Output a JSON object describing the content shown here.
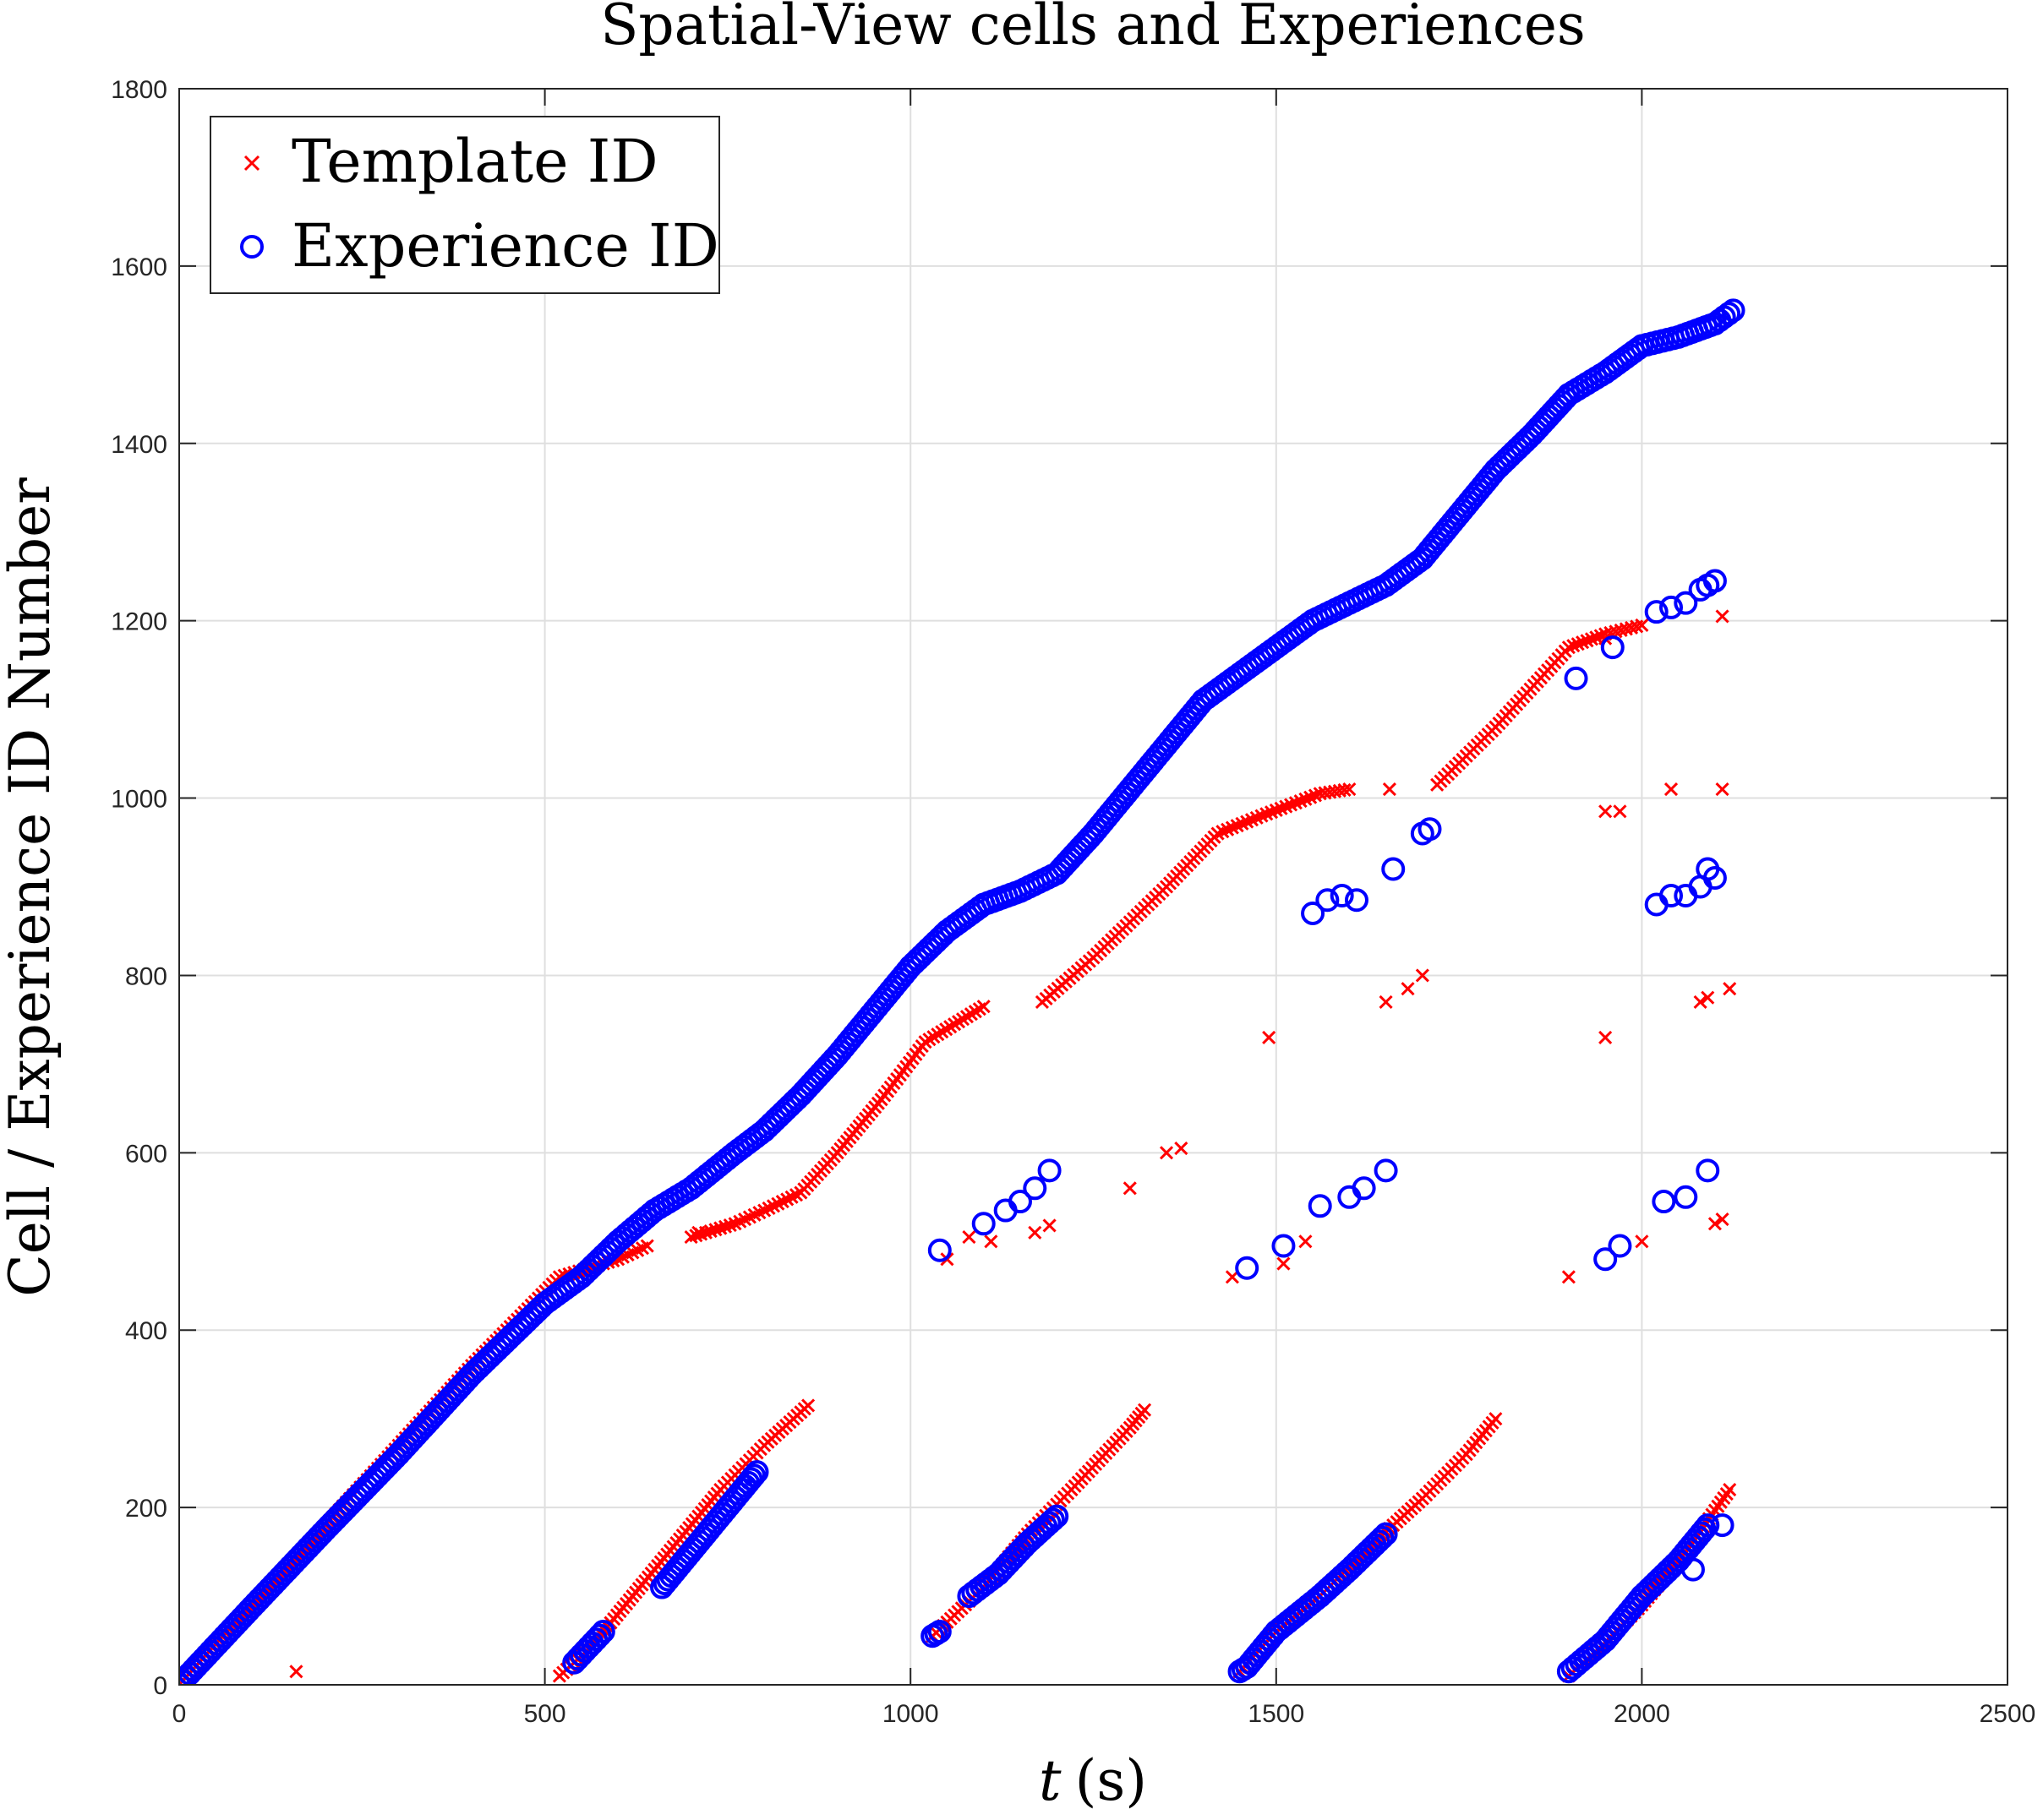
{
  "chart_data": {
    "type": "scatter",
    "title": "Spatial-View cells and Experiences",
    "xlabel_var": "t",
    "xlabel_unit": "(s)",
    "ylabel": "Cell / Experience ID Number",
    "xlim": [
      0,
      2500
    ],
    "ylim": [
      0,
      1800
    ],
    "xticks": [
      "0",
      "500",
      "1000",
      "1500",
      "2000",
      "2500"
    ],
    "yticks": [
      "0",
      "200",
      "400",
      "600",
      "800",
      "1000",
      "1200",
      "1400",
      "1600",
      "1800"
    ],
    "grid": true,
    "legend_position": "top-left",
    "colors": {
      "template": "#ff0000",
      "experience": "#0000ff"
    },
    "series": [
      {
        "name": "Template ID",
        "marker": "x",
        "color": "#ff0000",
        "segments": [
          [
            [
              0,
              0
            ],
            [
              100,
              92
            ],
            [
              200,
              180
            ],
            [
              300,
              270
            ],
            [
              400,
              360
            ],
            [
              520,
              460
            ],
            [
              560,
              470
            ],
            [
              600,
              480
            ],
            [
              640,
              495
            ]
          ],
          [
            [
              700,
              505
            ],
            [
              760,
              520
            ],
            [
              800,
              535
            ],
            [
              850,
              555
            ],
            [
              900,
              600
            ],
            [
              960,
              660
            ],
            [
              1020,
              725
            ],
            [
              1060,
              745
            ],
            [
              1100,
              765
            ]
          ],
          [
            [
              1180,
              770
            ],
            [
              1250,
              820
            ],
            [
              1300,
              860
            ],
            [
              1350,
              900
            ],
            [
              1420,
              960
            ],
            [
              1480,
              980
            ],
            [
              1560,
              1005
            ],
            [
              1600,
              1010
            ]
          ],
          [
            [
              1720,
              1015
            ],
            [
              1800,
              1080
            ],
            [
              1900,
              1170
            ],
            [
              1950,
              1185
            ],
            [
              2000,
              1195
            ]
          ],
          [
            [
              520,
              10
            ],
            [
              560,
              40
            ],
            [
              620,
              100
            ],
            [
              680,
              160
            ],
            [
              740,
              220
            ],
            [
              800,
              270
            ],
            [
              860,
              315
            ]
          ],
          [
            [
              1030,
              55
            ],
            [
              1100,
              110
            ],
            [
              1160,
              170
            ],
            [
              1220,
              220
            ],
            [
              1300,
              290
            ],
            [
              1320,
              310
            ]
          ],
          [
            [
              1450,
              15
            ],
            [
              1500,
              60
            ],
            [
              1560,
              100
            ],
            [
              1620,
              150
            ],
            [
              1700,
              210
            ],
            [
              1760,
              260
            ],
            [
              1800,
              300
            ]
          ],
          [
            [
              1900,
              10
            ],
            [
              1940,
              40
            ],
            [
              2000,
              90
            ],
            [
              2060,
              150
            ],
            [
              2120,
              220
            ]
          ]
        ],
        "scatter": [
          [
            160,
            15
          ],
          [
            710,
            510
          ],
          [
            740,
            515
          ],
          [
            1050,
            480
          ],
          [
            1080,
            505
          ],
          [
            1110,
            500
          ],
          [
            1170,
            510
          ],
          [
            1190,
            518
          ],
          [
            1300,
            560
          ],
          [
            1350,
            600
          ],
          [
            1370,
            605
          ],
          [
            1440,
            460
          ],
          [
            1490,
            730
          ],
          [
            1510,
            475
          ],
          [
            1540,
            500
          ],
          [
            1650,
            770
          ],
          [
            1680,
            785
          ],
          [
            1700,
            800
          ],
          [
            1655,
            1010
          ],
          [
            1900,
            460
          ],
          [
            1950,
            730
          ],
          [
            1950,
            985
          ],
          [
            1970,
            985
          ],
          [
            1950,
            1180
          ],
          [
            2000,
            500
          ],
          [
            2040,
            1010
          ],
          [
            2080,
            770
          ],
          [
            2090,
            775
          ],
          [
            2100,
            520
          ],
          [
            2110,
            525
          ],
          [
            2110,
            1010
          ],
          [
            2110,
            1205
          ],
          [
            2120,
            785
          ]
        ]
      },
      {
        "name": "Experience ID",
        "marker": "o",
        "color": "#0000ff",
        "segments": [
          [
            [
              0,
              0
            ],
            [
              100,
              88
            ],
            [
              200,
              175
            ],
            [
              300,
              260
            ],
            [
              400,
              350
            ],
            [
              500,
              430
            ],
            [
              550,
              460
            ],
            [
              600,
              500
            ],
            [
              650,
              535
            ],
            [
              700,
              560
            ],
            [
              760,
              600
            ],
            [
              800,
              625
            ],
            [
              850,
              665
            ],
            [
              900,
              710
            ],
            [
              950,
              760
            ],
            [
              1000,
              810
            ],
            [
              1050,
              850
            ],
            [
              1100,
              880
            ],
            [
              1150,
              895
            ],
            [
              1200,
              915
            ],
            [
              1250,
              960
            ],
            [
              1300,
              1010
            ],
            [
              1350,
              1060
            ],
            [
              1400,
              1110
            ],
            [
              1450,
              1140
            ],
            [
              1500,
              1170
            ],
            [
              1550,
              1200
            ],
            [
              1600,
              1220
            ],
            [
              1650,
              1240
            ],
            [
              1700,
              1270
            ],
            [
              1750,
              1320
            ],
            [
              1800,
              1370
            ],
            [
              1850,
              1410
            ],
            [
              1900,
              1455
            ],
            [
              1950,
              1480
            ],
            [
              2000,
              1510
            ],
            [
              2050,
              1520
            ],
            [
              2100,
              1535
            ],
            [
              2125,
              1550
            ]
          ],
          [
            [
              540,
              25
            ],
            [
              580,
              60
            ]
          ],
          [
            [
              660,
              110
            ],
            [
              720,
              170
            ],
            [
              770,
              220
            ],
            [
              790,
              240
            ]
          ],
          [
            [
              1030,
              55
            ],
            [
              1040,
              60
            ]
          ],
          [
            [
              1080,
              100
            ],
            [
              1120,
              125
            ],
            [
              1160,
              160
            ],
            [
              1200,
              190
            ]
          ],
          [
            [
              1450,
              15
            ],
            [
              1460,
              20
            ],
            [
              1500,
              60
            ],
            [
              1560,
              100
            ],
            [
              1600,
              130
            ],
            [
              1650,
              170
            ]
          ],
          [
            [
              1900,
              15
            ],
            [
              1950,
              50
            ],
            [
              2000,
              100
            ],
            [
              2050,
              140
            ],
            [
              2090,
              180
            ]
          ]
        ],
        "scatter": [
          [
            1040,
            490
          ],
          [
            1100,
            520
          ],
          [
            1130,
            535
          ],
          [
            1150,
            545
          ],
          [
            1170,
            560
          ],
          [
            1190,
            580
          ],
          [
            1460,
            470
          ],
          [
            1510,
            495
          ],
          [
            1560,
            540
          ],
          [
            1600,
            550
          ],
          [
            1620,
            560
          ],
          [
            1650,
            580
          ],
          [
            1550,
            870
          ],
          [
            1570,
            885
          ],
          [
            1590,
            890
          ],
          [
            1610,
            885
          ],
          [
            1660,
            920
          ],
          [
            1700,
            960
          ],
          [
            1710,
            965
          ],
          [
            1950,
            480
          ],
          [
            1970,
            495
          ],
          [
            2030,
            545
          ],
          [
            2060,
            550
          ],
          [
            2090,
            580
          ],
          [
            2020,
            880
          ],
          [
            2040,
            890
          ],
          [
            2060,
            890
          ],
          [
            2080,
            900
          ],
          [
            2090,
            920
          ],
          [
            2100,
            910
          ],
          [
            1910,
            1135
          ],
          [
            1960,
            1170
          ],
          [
            2020,
            1210
          ],
          [
            2040,
            1215
          ],
          [
            2060,
            1220
          ],
          [
            2080,
            1235
          ],
          [
            2090,
            1240
          ],
          [
            2100,
            1245
          ],
          [
            2070,
            130
          ],
          [
            2110,
            180
          ]
        ]
      }
    ]
  }
}
